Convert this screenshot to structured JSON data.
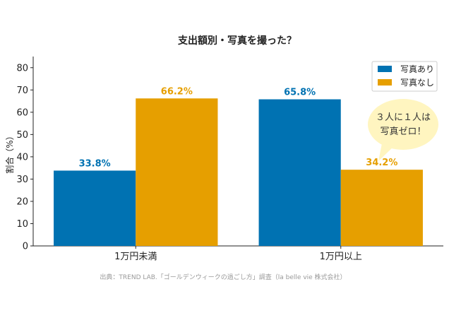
{
  "chart_data": {
    "type": "bar",
    "title": "支出額別・写真を撮った？",
    "ylabel": "割合（%）",
    "xlabel": "",
    "categories": [
      "1万円未満",
      "1万円以上"
    ],
    "series": [
      {
        "name": "写真あり",
        "values": [
          33.8,
          65.8
        ],
        "color": "#0072B2"
      },
      {
        "name": "写真なし",
        "values": [
          66.2,
          34.2
        ],
        "color": "#E69F00"
      }
    ],
    "data_labels": [
      [
        "33.8%",
        "65.8%"
      ],
      [
        "66.2%",
        "34.2%"
      ]
    ],
    "ylim": [
      0,
      85
    ],
    "yticks": [
      0,
      10,
      20,
      30,
      40,
      50,
      60,
      70,
      80
    ],
    "grid": false,
    "legend_position": "top-right",
    "annotation": {
      "line1": "３人に１人は",
      "line2": "写真ゼロ！",
      "bubble_color": "#FFF5C0"
    },
    "source": "出典：TREND LAB.「ゴールデンウィークの過ごし方」調査（la belle vie 株式会社）"
  }
}
